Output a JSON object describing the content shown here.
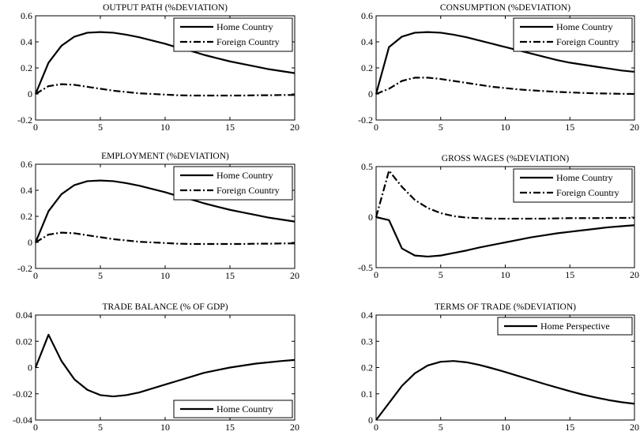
{
  "chart_data": [
    {
      "type": "line",
      "title": "OUTPUT PATH (%DEVIATION)",
      "x": [
        0,
        1,
        2,
        3,
        4,
        5,
        6,
        7,
        8,
        9,
        10,
        11,
        12,
        13,
        14,
        15,
        16,
        17,
        18,
        19,
        20
      ],
      "xticks": [
        "0",
        "5",
        "10",
        "15",
        "20"
      ],
      "xlim": [
        0,
        20
      ],
      "ylim": [
        -0.2,
        0.6
      ],
      "yticks": [
        "-0.2",
        "0",
        "0.2",
        "0.4",
        "0.6"
      ],
      "legend_position": "top-right",
      "series": [
        {
          "name": "Home Country",
          "style": "solid",
          "values": [
            0,
            0.24,
            0.37,
            0.44,
            0.47,
            0.475,
            0.47,
            0.455,
            0.435,
            0.41,
            0.385,
            0.355,
            0.33,
            0.3,
            0.275,
            0.25,
            0.23,
            0.21,
            0.19,
            0.175,
            0.16
          ]
        },
        {
          "name": "Foreign Country",
          "style": "dashdot",
          "values": [
            0,
            0.06,
            0.075,
            0.07,
            0.055,
            0.04,
            0.025,
            0.015,
            0.005,
            0,
            -0.005,
            -0.01,
            -0.012,
            -0.012,
            -0.012,
            -0.012,
            -0.012,
            -0.01,
            -0.01,
            -0.008,
            -0.008
          ]
        }
      ]
    },
    {
      "type": "line",
      "title": "CONSUMPTION (%DEVIATION)",
      "x": [
        0,
        1,
        2,
        3,
        4,
        5,
        6,
        7,
        8,
        9,
        10,
        11,
        12,
        13,
        14,
        15,
        16,
        17,
        18,
        19,
        20
      ],
      "xticks": [
        "0",
        "5",
        "10",
        "15",
        "20"
      ],
      "xlim": [
        0,
        20
      ],
      "ylim": [
        -0.2,
        0.6
      ],
      "yticks": [
        "-0.2",
        "0",
        "0.2",
        "0.4",
        "0.6"
      ],
      "legend_position": "top-right",
      "series": [
        {
          "name": "Home Country",
          "style": "solid",
          "values": [
            0,
            0.36,
            0.44,
            0.47,
            0.475,
            0.47,
            0.455,
            0.435,
            0.41,
            0.385,
            0.36,
            0.335,
            0.31,
            0.285,
            0.26,
            0.24,
            0.225,
            0.21,
            0.195,
            0.18,
            0.17
          ]
        },
        {
          "name": "Foreign Country",
          "style": "dashdot",
          "values": [
            0,
            0.04,
            0.1,
            0.125,
            0.125,
            0.115,
            0.1,
            0.085,
            0.07,
            0.055,
            0.045,
            0.035,
            0.028,
            0.022,
            0.016,
            0.012,
            0.008,
            0.005,
            0.003,
            0.001,
            0
          ]
        }
      ]
    },
    {
      "type": "line",
      "title": "EMPLOYMENT (%DEVIATION)",
      "x": [
        0,
        1,
        2,
        3,
        4,
        5,
        6,
        7,
        8,
        9,
        10,
        11,
        12,
        13,
        14,
        15,
        16,
        17,
        18,
        19,
        20
      ],
      "xticks": [
        "0",
        "5",
        "10",
        "15",
        "20"
      ],
      "xlim": [
        0,
        20
      ],
      "ylim": [
        -0.2,
        0.6
      ],
      "yticks": [
        "-0.2",
        "0",
        "0.2",
        "0.4",
        "0.6"
      ],
      "legend_position": "top-right",
      "series": [
        {
          "name": "Home Country",
          "style": "solid",
          "values": [
            0,
            0.24,
            0.37,
            0.44,
            0.47,
            0.475,
            0.47,
            0.455,
            0.435,
            0.41,
            0.385,
            0.355,
            0.33,
            0.3,
            0.275,
            0.25,
            0.23,
            0.21,
            0.19,
            0.175,
            0.16
          ]
        },
        {
          "name": "Foreign Country",
          "style": "dashdot",
          "values": [
            0,
            0.06,
            0.075,
            0.07,
            0.055,
            0.04,
            0.025,
            0.015,
            0.005,
            0,
            -0.005,
            -0.01,
            -0.012,
            -0.012,
            -0.012,
            -0.012,
            -0.012,
            -0.01,
            -0.01,
            -0.008,
            -0.008
          ]
        }
      ]
    },
    {
      "type": "line",
      "title": "GROSS WAGES (%DEVIATION)",
      "x": [
        0,
        1,
        2,
        3,
        4,
        5,
        6,
        7,
        8,
        9,
        10,
        11,
        12,
        13,
        14,
        15,
        16,
        17,
        18,
        19,
        20
      ],
      "xticks": [
        "0",
        "5",
        "10",
        "15",
        "20"
      ],
      "xlim": [
        0,
        20
      ],
      "ylim": [
        -0.5,
        0.5
      ],
      "yticks": [
        "-0.5",
        "0",
        "0.5"
      ],
      "legend_position": "top-right",
      "series": [
        {
          "name": "Home Country",
          "style": "solid",
          "values": [
            0,
            -0.03,
            -0.31,
            -0.38,
            -0.39,
            -0.38,
            -0.355,
            -0.33,
            -0.3,
            -0.275,
            -0.25,
            -0.225,
            -0.2,
            -0.18,
            -0.16,
            -0.145,
            -0.13,
            -0.115,
            -0.1,
            -0.09,
            -0.08
          ]
        },
        {
          "name": "Foreign Country",
          "style": "dashdot",
          "values": [
            0,
            0.46,
            0.3,
            0.17,
            0.09,
            0.04,
            0.01,
            -0.005,
            -0.01,
            -0.015,
            -0.015,
            -0.015,
            -0.015,
            -0.015,
            -0.012,
            -0.01,
            -0.01,
            -0.01,
            -0.008,
            -0.008,
            -0.008
          ]
        }
      ]
    },
    {
      "type": "line",
      "title": "TRADE BALANCE (% OF GDP)",
      "x": [
        0,
        1,
        2,
        3,
        4,
        5,
        6,
        7,
        8,
        9,
        10,
        11,
        12,
        13,
        14,
        15,
        16,
        17,
        18,
        19,
        20
      ],
      "xticks": [
        "0",
        "5",
        "10",
        "15",
        "20"
      ],
      "xlim": [
        0,
        20
      ],
      "ylim": [
        -0.04,
        0.04
      ],
      "yticks": [
        "-0.04",
        "-0.02",
        "0",
        "0.02",
        "0.04"
      ],
      "legend_position": "bottom-right",
      "series": [
        {
          "name": "Home Country",
          "style": "solid",
          "values": [
            0,
            0.025,
            0.005,
            -0.009,
            -0.017,
            -0.021,
            -0.022,
            -0.021,
            -0.019,
            -0.016,
            -0.013,
            -0.01,
            -0.007,
            -0.004,
            -0.002,
            0,
            0.0015,
            0.003,
            0.004,
            0.005,
            0.0058
          ]
        }
      ]
    },
    {
      "type": "line",
      "title": "TERMS OF TRADE (%DEVIATION)",
      "x": [
        0,
        1,
        2,
        3,
        4,
        5,
        6,
        7,
        8,
        9,
        10,
        11,
        12,
        13,
        14,
        15,
        16,
        17,
        18,
        19,
        20
      ],
      "xticks": [
        "0",
        "5",
        "10",
        "15",
        "20"
      ],
      "xlim": [
        0,
        20
      ],
      "ylim": [
        0,
        0.4
      ],
      "yticks": [
        "0",
        "0.1",
        "0.2",
        "0.3",
        "0.4"
      ],
      "legend_position": "top-right",
      "series": [
        {
          "name": "Home Perspective",
          "style": "solid",
          "values": [
            0,
            0.065,
            0.13,
            0.178,
            0.208,
            0.222,
            0.225,
            0.22,
            0.21,
            0.197,
            0.183,
            0.168,
            0.153,
            0.138,
            0.124,
            0.11,
            0.097,
            0.086,
            0.076,
            0.068,
            0.062
          ]
        }
      ]
    }
  ]
}
